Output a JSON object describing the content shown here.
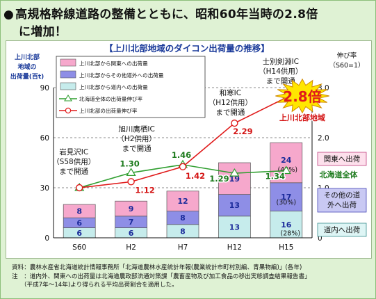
{
  "headline": {
    "bullet": "●",
    "line1": "高規格幹線道路の整備とともに、昭和60年当時の2.8倍",
    "line2": "に増加！"
  },
  "chart_data": {
    "type": "bar",
    "title": "【上川北部地域のダイコン出荷量の推移】",
    "ylabel_left": [
      "上川北部",
      "地域の",
      "出荷量(百t)"
    ],
    "ylabel_right": [
      "伸び率",
      "（S60=1）"
    ],
    "categories": [
      "S60",
      "H2",
      "H7",
      "H12",
      "H15"
    ],
    "left_axis": {
      "ylim": [
        0,
        90
      ],
      "ticks": [
        "0",
        "30",
        "60",
        "90"
      ]
    },
    "right_axis": {
      "ylim": [
        0,
        3.0
      ],
      "ticks": [
        "0",
        "1.0",
        "2.0",
        "3.0"
      ]
    },
    "series": [
      {
        "name": "上川北部から道内への出荷量",
        "values": [
          6,
          6,
          8,
          13,
          16
        ],
        "color": "#c6ecec"
      },
      {
        "name": "上川北部からその他道外への出荷量",
        "values": [
          6,
          7,
          8,
          13,
          17
        ],
        "color": "#8e8ee6"
      },
      {
        "name": "上川北部から関東への出荷量",
        "values": [
          8,
          9,
          12,
          19,
          24
        ],
        "color": "#f6a8cc"
      }
    ],
    "lines": [
      {
        "name": "北海道全体の出荷量伸び率",
        "values": [
          1,
          1.3,
          1.46,
          1.29,
          1.34
        ],
        "labels": [
          "",
          "1.30",
          "1.46",
          "1.29",
          "1.34"
        ],
        "color": "#2e9e2e",
        "marker": "triangle"
      },
      {
        "name": "上川北部の出荷量伸び率",
        "values": [
          1,
          1.12,
          1.42,
          2.29,
          2.8
        ],
        "labels": [
          "",
          "1.12",
          "1.42",
          "2.29",
          ""
        ],
        "color": "#e01a1a",
        "marker": "circle"
      }
    ],
    "bar_labels": [
      {
        "cat": 4,
        "text": "(42%)"
      },
      {
        "cat": 4,
        "text": "(30%)"
      },
      {
        "cat": 4,
        "text": "(28%)"
      }
    ],
    "right_labels": [
      "関東へ出荷",
      "その他の道",
      "外へ出荷",
      "道内へ出荷",
      "北海道全体",
      "上川北部地域"
    ],
    "annotations": {
      "s60": [
        "岩見沢IC",
        "（S58供用）",
        "まで開通"
      ],
      "h2": [
        "旭川鷹栖IC",
        "（H2供用）",
        "まで開通"
      ],
      "h12": [
        "和寒IC",
        "（H12供用）",
        "まで開通"
      ],
      "h15": [
        "士別剣淵IC",
        "（H14供用）",
        "まで開通"
      ],
      "burst": "2.8倍"
    },
    "grid": "dashed horizontal",
    "legend_position": "top-left"
  },
  "footnote": {
    "line1": "資料：農林水産省北海道統計情報事務所「北海道農林水産統計年報(農業統計市町村別編、青果物編)」(各年)",
    "line2": "注　：道内外、関東への出荷量は北海道農政部流通対策課「農畜産物及び加工食品の移出実態調査結果報告書」",
    "line3": "　　（平成7年～14年)より得られる平均出荷割合を適用した。"
  }
}
